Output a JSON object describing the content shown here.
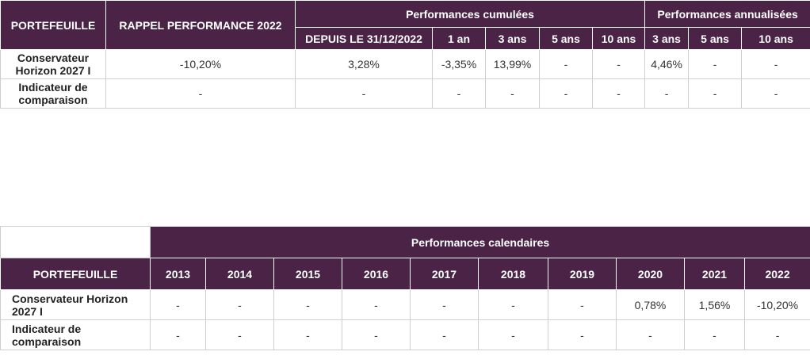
{
  "top_table": {
    "headers": {
      "portefeuille": "PORTEFEUILLE",
      "rappel": "RAPPEL PERFORMANCE 2022",
      "cumulees": "Performances cumulées",
      "annualisees": "Performances annualisées",
      "cum_cols": [
        "DEPUIS LE 31/12/2022",
        "1 an",
        "3 ans",
        "5 ans",
        "10 ans"
      ],
      "ann_cols": [
        "3 ans",
        "5 ans",
        "10 ans"
      ]
    },
    "rows": [
      {
        "label": "Conservateur Horizon 2027 I",
        "rappel": "-10,20%",
        "cum": [
          "3,28%",
          "-3,35%",
          "13,99%",
          "-",
          "-"
        ],
        "ann": [
          "4,46%",
          "-",
          "-"
        ]
      },
      {
        "label": "Indicateur de comparaison",
        "rappel": "-",
        "cum": [
          "-",
          "-",
          "-",
          "-",
          "-"
        ],
        "ann": [
          "-",
          "-",
          "-"
        ]
      }
    ]
  },
  "bottom_table": {
    "headers": {
      "calendaires": "Performances calendaires",
      "portefeuille": "PORTEFEUILLE",
      "years": [
        "2013",
        "2014",
        "2015",
        "2016",
        "2017",
        "2018",
        "2019",
        "2020",
        "2021",
        "2022"
      ]
    },
    "rows": [
      {
        "label": "Conservateur Horizon 2027 I",
        "values": [
          "-",
          "-",
          "-",
          "-",
          "-",
          "-",
          "-",
          "0,78%",
          "1,56%",
          "-10,20%"
        ]
      },
      {
        "label": "Indicateur de comparaison",
        "values": [
          "-",
          "-",
          "-",
          "-",
          "-",
          "-",
          "-",
          "-",
          "-",
          "-"
        ]
      }
    ]
  },
  "colors": {
    "header_bg": "#4b2346",
    "header_text": "#ffffff",
    "grid": "#cfcfcf"
  }
}
